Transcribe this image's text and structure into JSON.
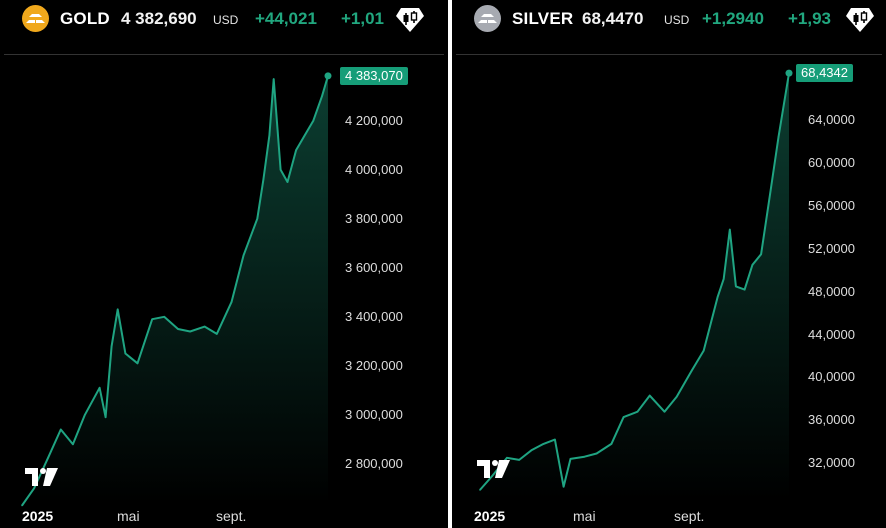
{
  "gold": {
    "symbol": "GOLD",
    "price": "4 382,690",
    "currency": "USD",
    "change": "+44,021",
    "change_pct": "+1,01",
    "last_badge": "4 383,070",
    "icon": "gold-bars-icon",
    "colors": {
      "coin": "#f0a81c",
      "line": "#1fa482",
      "badge": "#169d78"
    }
  },
  "silver": {
    "symbol": "SILVER",
    "price": "68,4470",
    "currency": "USD",
    "change": "+1,2940",
    "change_pct": "+1,93",
    "last_badge": "68,4342",
    "icon": "silver-bars-icon",
    "colors": {
      "coin": "#a7aab1",
      "line": "#1fa482",
      "badge": "#169d78"
    }
  },
  "time_axis": {
    "year": "2025",
    "may": "mai",
    "sept": "sept."
  },
  "chart_data": [
    {
      "type": "area",
      "title": "GOLD",
      "ylim": [
        2640,
        4460
      ],
      "yticks": [
        "4 200,000",
        "4 000,000",
        "3 800,000",
        "3 600,000",
        "3 400,000",
        "3 200,000",
        "3 000,000",
        "2 800,000"
      ],
      "ytick_values": [
        4200,
        4000,
        3800,
        3600,
        3400,
        3200,
        3000,
        2800
      ],
      "xticks": [
        "2025",
        "mai",
        "sept."
      ],
      "last_value": 4383.07,
      "x": [
        "2025-01-01",
        "2025-01-15",
        "2025-02-01",
        "2025-02-15",
        "2025-03-01",
        "2025-03-15",
        "2025-04-01",
        "2025-04-08",
        "2025-04-15",
        "2025-04-22",
        "2025-05-01",
        "2025-05-15",
        "2025-06-01",
        "2025-06-15",
        "2025-07-01",
        "2025-07-15",
        "2025-08-01",
        "2025-08-15",
        "2025-09-01",
        "2025-09-15",
        "2025-10-01",
        "2025-10-08",
        "2025-10-15",
        "2025-10-20",
        "2025-10-28",
        "2025-11-05",
        "2025-11-15",
        "2025-11-25",
        "2025-12-05",
        "2025-12-15",
        "2025-12-22"
      ],
      "values": [
        2630,
        2700,
        2830,
        2940,
        2880,
        3000,
        3110,
        2990,
        3280,
        3430,
        3250,
        3210,
        3390,
        3400,
        3350,
        3340,
        3360,
        3330,
        3460,
        3650,
        3800,
        3960,
        4140,
        4370,
        4000,
        3950,
        4080,
        4140,
        4200,
        4300,
        4383
      ]
    },
    {
      "type": "area",
      "title": "SILVER",
      "ylim": [
        28,
        70
      ],
      "yticks": [
        "64,0000",
        "60,0000",
        "56,0000",
        "52,0000",
        "48,0000",
        "44,0000",
        "40,0000",
        "36,0000",
        "32,0000"
      ],
      "ytick_values": [
        64,
        60,
        56,
        52,
        48,
        44,
        40,
        36,
        32
      ],
      "xticks": [
        "2025",
        "mai",
        "sept."
      ],
      "last_value": 68.4342,
      "x": [
        "2025-01-01",
        "2025-01-15",
        "2025-02-01",
        "2025-02-15",
        "2025-03-01",
        "2025-03-15",
        "2025-03-28",
        "2025-04-07",
        "2025-04-15",
        "2025-05-01",
        "2025-05-15",
        "2025-06-01",
        "2025-06-15",
        "2025-07-01",
        "2025-07-15",
        "2025-08-01",
        "2025-08-15",
        "2025-09-01",
        "2025-09-15",
        "2025-10-01",
        "2025-10-08",
        "2025-10-15",
        "2025-10-22",
        "2025-11-01",
        "2025-11-10",
        "2025-11-20",
        "2025-12-01",
        "2025-12-10",
        "2025-12-22"
      ],
      "values": [
        29.5,
        30.8,
        32.5,
        32.3,
        33.2,
        33.8,
        34.2,
        29.8,
        32.4,
        32.6,
        32.9,
        33.8,
        36.3,
        36.8,
        38.3,
        36.8,
        38.2,
        40.6,
        42.5,
        47.5,
        49.2,
        53.8,
        48.5,
        48.2,
        50.5,
        51.5,
        57.5,
        62.5,
        68.4
      ]
    }
  ]
}
